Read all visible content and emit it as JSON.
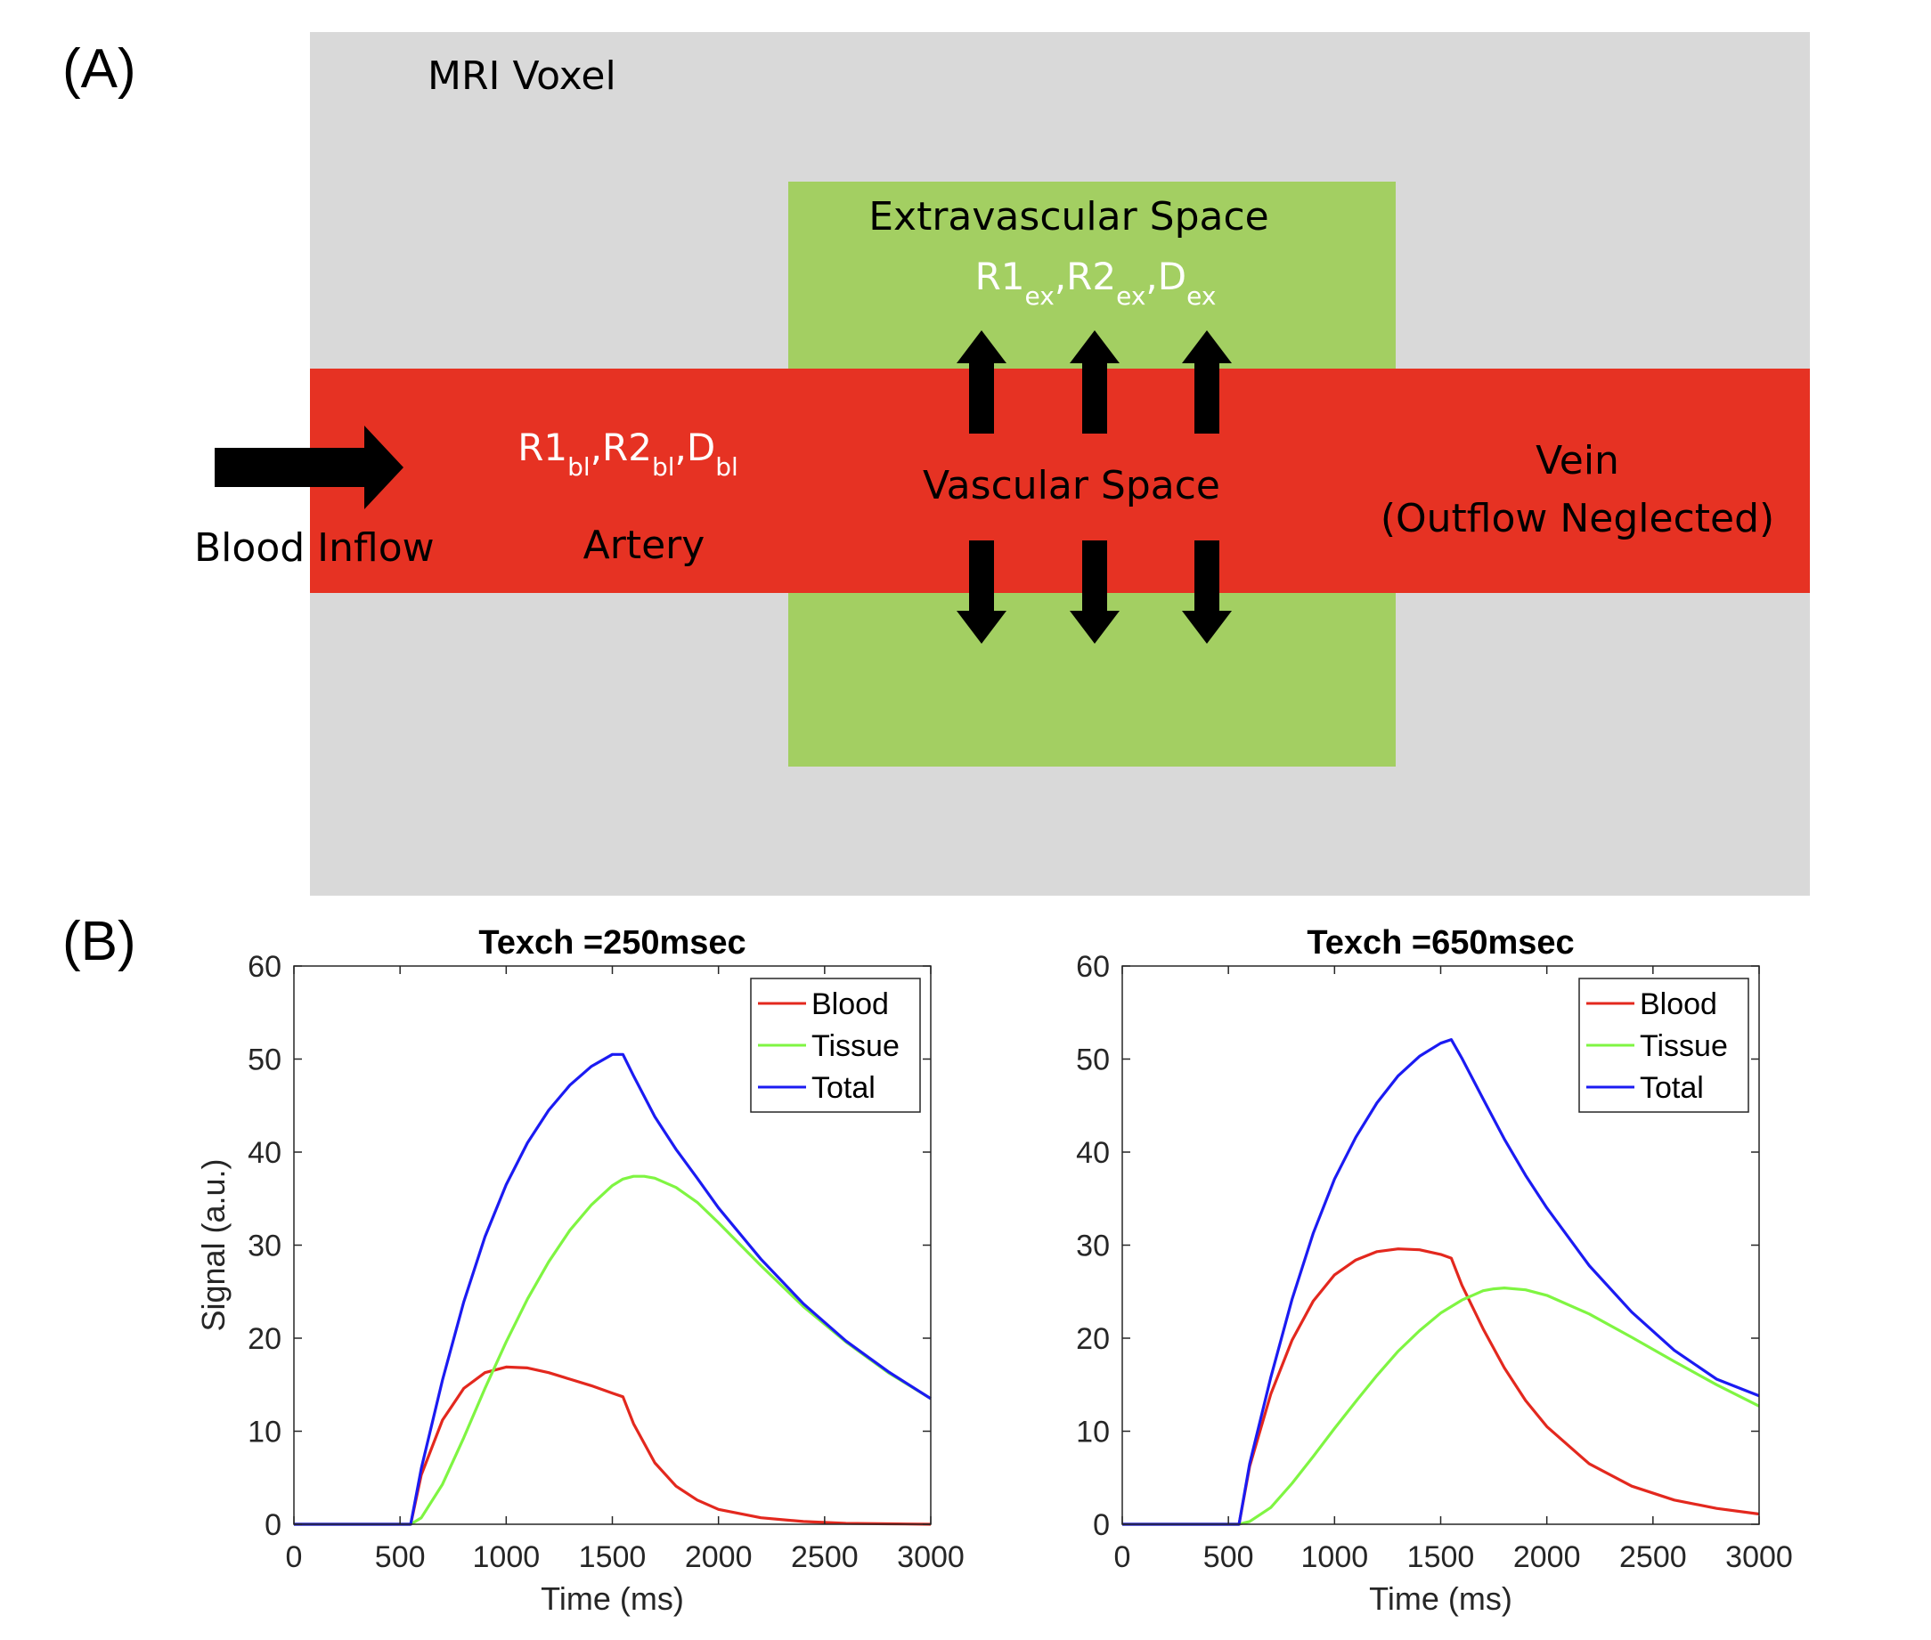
{
  "panel_a": {
    "label": "(A)",
    "voxel_label": "MRI Voxel",
    "extravascular_label": "Extravascular Space",
    "extravascular_params": [
      {
        "base": "R1",
        "sub": "ex"
      },
      {
        "base": "R2",
        "sub": "ex"
      },
      {
        "base": "D",
        "sub": "ex"
      }
    ],
    "blood_params": [
      {
        "base": "R1",
        "sub": "bl"
      },
      {
        "base": "R2",
        "sub": "bl"
      },
      {
        "base": "D",
        "sub": "bl"
      }
    ],
    "vascular_label": "Vascular Space",
    "artery_label": "Artery",
    "inflow_label": "Blood Inflow",
    "vein_label_line1": "Vein",
    "vein_label_line2": "(Outflow Neglected)",
    "colors": {
      "voxel": "#d9d9d9",
      "extravascular": "#a3cf62",
      "vessel": "#e63223",
      "arrow": "#000000",
      "param_text": "#ffffff"
    }
  },
  "panel_b": {
    "label": "(B)"
  },
  "chart_data": [
    {
      "type": "line",
      "title": "Texch =250msec",
      "xlabel": "Time (ms)",
      "ylabel": "Signal (a.u.)",
      "xlim": [
        0,
        3000
      ],
      "ylim": [
        0,
        60
      ],
      "xticks": [
        0,
        500,
        1000,
        1500,
        2000,
        2500,
        3000
      ],
      "yticks": [
        0,
        10,
        20,
        30,
        40,
        50,
        60
      ],
      "legend_position": "top-right",
      "series": [
        {
          "name": "Blood",
          "color": "#e3281e",
          "x": [
            0,
            550,
            600,
            700,
            800,
            900,
            1000,
            1100,
            1200,
            1300,
            1400,
            1500,
            1550,
            1600,
            1700,
            1800,
            1900,
            2000,
            2200,
            2400,
            2600,
            2800,
            3000
          ],
          "y": [
            0,
            0,
            5.3,
            11.2,
            14.6,
            16.3,
            16.9,
            16.8,
            16.3,
            15.6,
            14.9,
            14.1,
            13.7,
            10.8,
            6.6,
            4.1,
            2.6,
            1.6,
            0.7,
            0.3,
            0.1,
            0.05,
            0
          ]
        },
        {
          "name": "Tissue",
          "color": "#7ff542",
          "x": [
            0,
            550,
            600,
            700,
            800,
            900,
            1000,
            1100,
            1200,
            1300,
            1400,
            1500,
            1550,
            1600,
            1650,
            1700,
            1800,
            1900,
            2000,
            2200,
            2400,
            2600,
            2800,
            3000
          ],
          "y": [
            0,
            0,
            0.7,
            4.3,
            9.3,
            14.6,
            19.6,
            24.2,
            28.2,
            31.6,
            34.3,
            36.4,
            37.1,
            37.4,
            37.4,
            37.2,
            36.2,
            34.6,
            32.4,
            27.8,
            23.4,
            19.6,
            16.3,
            13.5
          ]
        },
        {
          "name": "Total",
          "color": "#1b1bf2",
          "x": [
            0,
            550,
            600,
            700,
            800,
            900,
            1000,
            1100,
            1200,
            1300,
            1400,
            1500,
            1550,
            1600,
            1700,
            1800,
            1900,
            2000,
            2200,
            2400,
            2600,
            2800,
            3000
          ],
          "y": [
            0,
            0,
            6.0,
            15.5,
            23.9,
            30.9,
            36.5,
            41.0,
            44.5,
            47.2,
            49.2,
            50.5,
            50.5,
            48.2,
            43.8,
            40.3,
            37.2,
            34.0,
            28.5,
            23.7,
            19.7,
            16.4,
            13.5
          ]
        }
      ]
    },
    {
      "type": "line",
      "title": "Texch =650msec",
      "xlabel": "Time (ms)",
      "ylabel": "",
      "xlim": [
        0,
        3000
      ],
      "ylim": [
        0,
        60
      ],
      "xticks": [
        0,
        500,
        1000,
        1500,
        2000,
        2500,
        3000
      ],
      "yticks": [
        0,
        10,
        20,
        30,
        40,
        50,
        60
      ],
      "legend_position": "top-right",
      "series": [
        {
          "name": "Blood",
          "color": "#e3281e",
          "x": [
            0,
            550,
            600,
            700,
            800,
            900,
            1000,
            1100,
            1200,
            1300,
            1400,
            1500,
            1550,
            1600,
            1700,
            1800,
            1900,
            2000,
            2200,
            2400,
            2600,
            2800,
            3000
          ],
          "y": [
            0,
            0,
            6.2,
            14.0,
            19.8,
            24.0,
            26.8,
            28.4,
            29.3,
            29.6,
            29.5,
            29.0,
            28.6,
            25.7,
            21.0,
            16.8,
            13.3,
            10.5,
            6.5,
            4.1,
            2.6,
            1.7,
            1.1
          ]
        },
        {
          "name": "Tissue",
          "color": "#7ff542",
          "x": [
            0,
            550,
            600,
            700,
            800,
            900,
            1000,
            1100,
            1200,
            1300,
            1400,
            1500,
            1600,
            1700,
            1750,
            1800,
            1900,
            2000,
            2200,
            2400,
            2600,
            2800,
            3000
          ],
          "y": [
            0,
            0,
            0.3,
            1.8,
            4.4,
            7.3,
            10.3,
            13.2,
            16.0,
            18.6,
            20.8,
            22.7,
            24.1,
            25.1,
            25.3,
            25.4,
            25.2,
            24.6,
            22.6,
            20.1,
            17.5,
            15.0,
            12.7
          ]
        },
        {
          "name": "Total",
          "color": "#1b1bf2",
          "x": [
            0,
            550,
            600,
            700,
            800,
            900,
            1000,
            1100,
            1200,
            1300,
            1400,
            1500,
            1550,
            1600,
            1700,
            1800,
            1900,
            2000,
            2200,
            2400,
            2600,
            2800,
            3000
          ],
          "y": [
            0,
            0,
            6.5,
            15.8,
            24.2,
            31.3,
            37.1,
            41.6,
            45.3,
            48.2,
            50.3,
            51.7,
            52.1,
            50.1,
            45.7,
            41.4,
            37.5,
            34.0,
            27.8,
            22.8,
            18.7,
            15.6,
            13.8
          ]
        }
      ]
    }
  ]
}
